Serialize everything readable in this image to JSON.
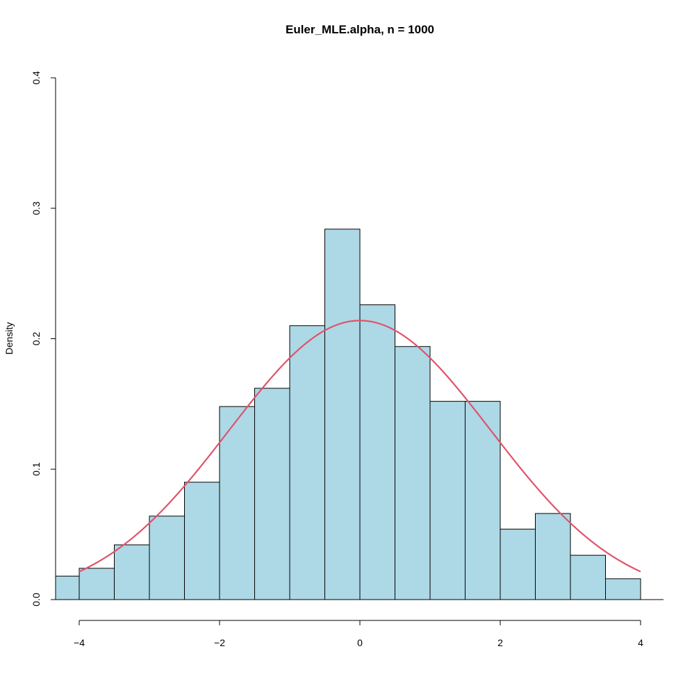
{
  "chart_data": {
    "type": "bar",
    "title": "Euler_MLE.alpha, n = 1000",
    "xlabel": "",
    "ylabel": "Density",
    "xlim": [
      -4.3,
      4.3
    ],
    "ylim": [
      0,
      0.4
    ],
    "x_ticks": [
      -4,
      -2,
      0,
      2,
      4
    ],
    "x_tick_labels": [
      "−4",
      "−2",
      "0",
      "2",
      "4"
    ],
    "y_ticks": [
      0.0,
      0.1,
      0.2,
      0.3,
      0.4
    ],
    "y_tick_labels": [
      "0.0",
      "0.1",
      "0.2",
      "0.3",
      "0.4"
    ],
    "bin_edges": [
      -4.5,
      -4.0,
      -3.5,
      -3.0,
      -2.5,
      -2.0,
      -1.5,
      -1.0,
      -0.5,
      0.0,
      0.5,
      1.0,
      1.5,
      2.0,
      2.5,
      3.0,
      3.5,
      4.0
    ],
    "values": [
      0.018,
      0.024,
      0.042,
      0.064,
      0.09,
      0.148,
      0.162,
      0.21,
      0.284,
      0.226,
      0.194,
      0.152,
      0.152,
      0.054,
      0.066,
      0.034,
      0.016
    ],
    "curve": {
      "type": "normal-density",
      "mean": 0,
      "sd": 1.865,
      "x_range": [
        -4,
        4
      ]
    },
    "colors": {
      "bar_fill": "#add8e6",
      "bar_stroke": "#000000",
      "curve": "#df536b"
    },
    "grid": false,
    "legend": "none"
  }
}
